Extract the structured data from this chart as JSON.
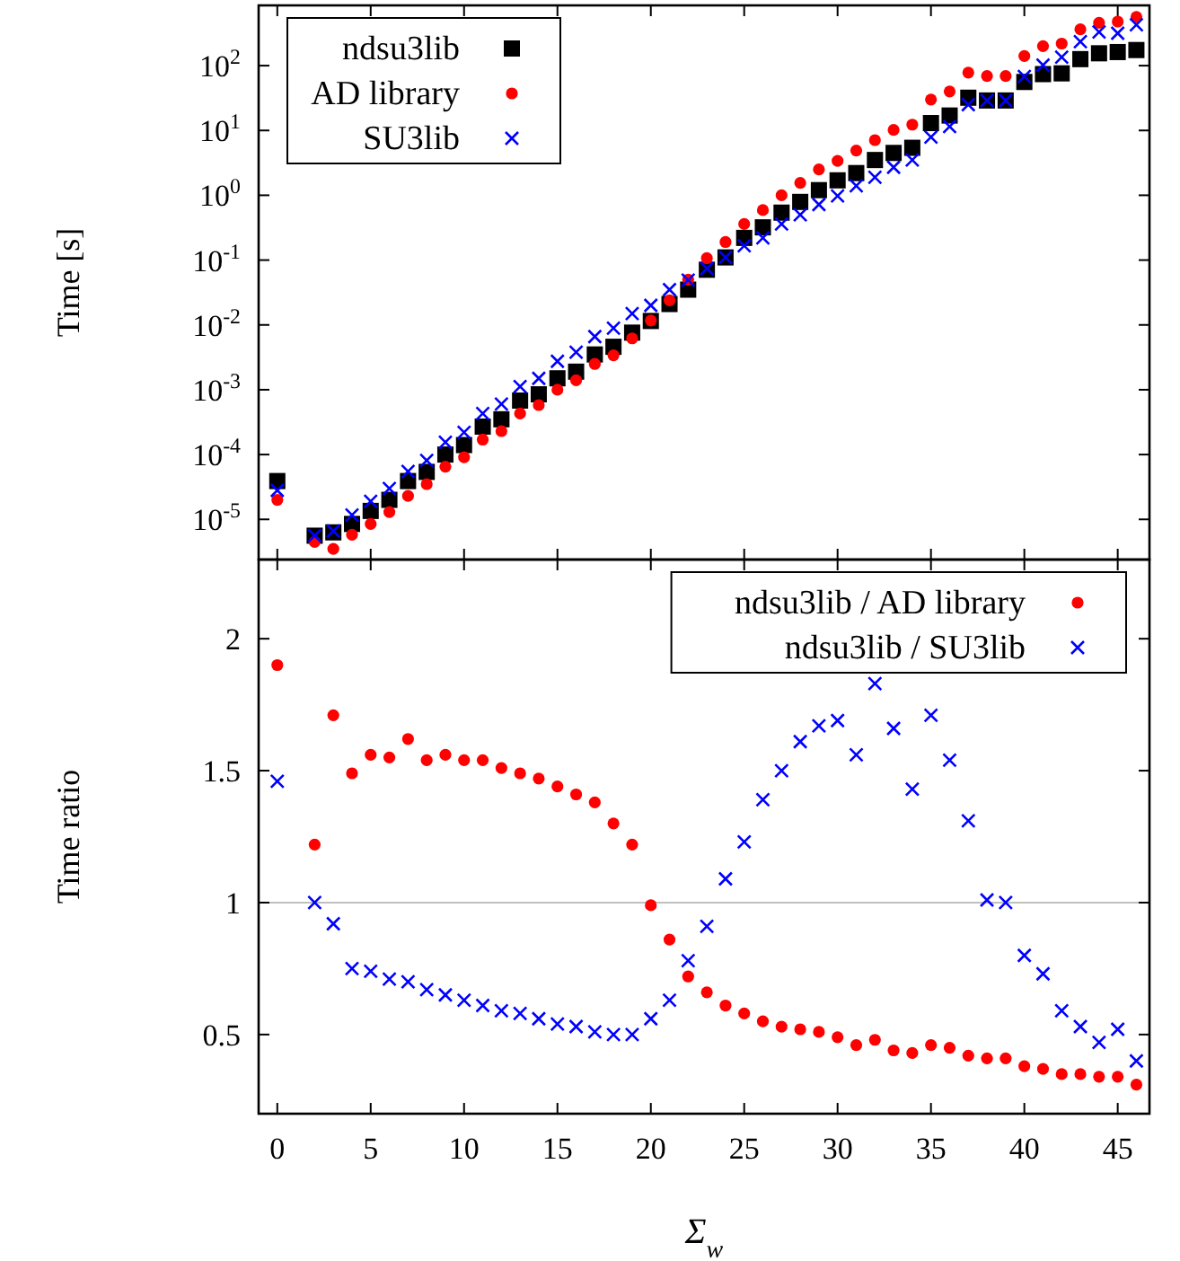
{
  "chart_data": [
    {
      "type": "scatter",
      "ylabel": "Time [s]",
      "log": "y",
      "legend": "top left",
      "tick_labels": "y",
      "grid": false,
      "x": [
        0,
        2,
        3,
        4,
        5,
        6,
        7,
        8,
        9,
        10,
        11,
        12,
        13,
        14,
        15,
        16,
        17,
        18,
        19,
        20,
        21,
        22,
        23,
        24,
        25,
        26,
        27,
        28,
        29,
        30,
        31,
        32,
        33,
        34,
        35,
        36,
        37,
        38,
        39,
        40,
        41,
        42,
        43,
        44,
        45,
        46
      ],
      "xlim": [
        -1,
        46.7
      ],
      "xticks": [
        0,
        5,
        10,
        15,
        20,
        25,
        30,
        35,
        40,
        45
      ],
      "ylim": [
        2.4e-06,
        850
      ],
      "yticks": [
        {
          "value": 1e-05,
          "label": "10$^{-5}$"
        },
        {
          "value": 0.0001,
          "label": "10$^{-4}$"
        },
        {
          "value": 0.001,
          "label": "10$^{-3}$"
        },
        {
          "value": 0.01,
          "label": "10$^{-2}$"
        },
        {
          "value": 0.1,
          "label": "10$^{-1}$"
        },
        {
          "value": 1,
          "label": "10$^{0}$"
        },
        {
          "value": 10,
          "label": "10$^{1}$"
        },
        {
          "value": 100,
          "label": "10$^{2}$"
        }
      ],
      "series": [
        {
          "name": "ndsu3lib",
          "color": "#000000",
          "marker": "square",
          "values": [
            3.9e-05,
            5.6e-06,
            6.3e-06,
            8.5e-06,
            1.35e-05,
            2e-05,
            3.9e-05,
            5.4e-05,
            0.0001,
            0.00014,
            0.00027,
            0.00035,
            0.00068,
            0.00085,
            0.0015,
            0.0019,
            0.0035,
            0.0046,
            0.0076,
            0.0115,
            0.021,
            0.035,
            0.071,
            0.11,
            0.22,
            0.32,
            0.54,
            0.79,
            1.2,
            1.7,
            2.2,
            3.5,
            4.5,
            5.4,
            13,
            17,
            32,
            29,
            29,
            56,
            74,
            76,
            126,
            155,
            162,
            174
          ]
        },
        {
          "name": "AD library",
          "color": "#ff0000",
          "marker": "circle",
          "values": [
            2e-05,
            4.5e-06,
            3.5e-06,
            5.8e-06,
            8.5e-06,
            1.3e-05,
            2.3e-05,
            3.5e-05,
            6.5e-05,
            9.1e-05,
            0.00017,
            0.00023,
            0.00043,
            0.00058,
            0.001,
            0.0014,
            0.0025,
            0.0034,
            0.0062,
            0.0117,
            0.024,
            0.05,
            0.107,
            0.19,
            0.36,
            0.59,
            1.0,
            1.55,
            2.5,
            3.4,
            4.9,
            7.1,
            10.2,
            12.3,
            30,
            40,
            78,
            69,
            69,
            141,
            200,
            219,
            363,
            457,
            479,
            562
          ]
        },
        {
          "name": "SU3lib",
          "color": "#0000ff",
          "marker": "cross",
          "values": [
            2.8e-05,
            5.6e-06,
            6.6e-06,
            1.17e-05,
            1.9e-05,
            3e-05,
            5.5e-05,
            8.1e-05,
            0.000155,
            0.00022,
            0.00043,
            0.0006,
            0.00112,
            0.0015,
            0.00275,
            0.0038,
            0.0066,
            0.0089,
            0.015,
            0.02,
            0.035,
            0.049,
            0.074,
            0.11,
            0.166,
            0.22,
            0.36,
            0.5,
            0.72,
            0.98,
            1.4,
            1.9,
            2.7,
            3.5,
            7.9,
            11.5,
            25,
            29,
            29,
            68,
            102,
            135,
            234,
            331,
            316,
            427
          ]
        }
      ]
    },
    {
      "type": "scatter",
      "ylabel": "Time ratio",
      "xlabel": "Σ$_{w}$",
      "legend": "top right",
      "grid": false,
      "x": [
        0,
        2,
        3,
        4,
        5,
        6,
        7,
        8,
        9,
        10,
        11,
        12,
        13,
        14,
        15,
        16,
        17,
        18,
        19,
        20,
        21,
        22,
        23,
        24,
        25,
        26,
        27,
        28,
        29,
        30,
        31,
        32,
        33,
        34,
        35,
        36,
        37,
        38,
        39,
        40,
        41,
        42,
        43,
        44,
        45,
        46
      ],
      "xlim": [
        -1,
        46.7
      ],
      "xticks": [
        0,
        5,
        10,
        15,
        20,
        25,
        30,
        35,
        40,
        45
      ],
      "ylim": [
        0.2,
        2.3
      ],
      "yticks": [
        0.5,
        1,
        1.5,
        2
      ],
      "ref_lines": [
        {
          "axis": "y",
          "value": 1,
          "color": "#c0c0c0"
        }
      ],
      "series": [
        {
          "name": "ndsu3lib / AD library",
          "color": "#ff0000",
          "marker": "circle",
          "values": [
            1.9,
            1.22,
            1.71,
            1.49,
            1.56,
            1.55,
            1.62,
            1.54,
            1.56,
            1.54,
            1.54,
            1.51,
            1.49,
            1.47,
            1.44,
            1.41,
            1.38,
            1.3,
            1.22,
            0.99,
            0.86,
            0.72,
            0.66,
            0.61,
            0.58,
            0.55,
            0.53,
            0.52,
            0.51,
            0.49,
            0.46,
            0.48,
            0.44,
            0.43,
            0.46,
            0.45,
            0.42,
            0.41,
            0.41,
            0.38,
            0.37,
            0.35,
            0.35,
            0.34,
            0.34,
            0.31
          ]
        },
        {
          "name": "ndsu3lib / SU3lib",
          "color": "#0000ff",
          "marker": "cross",
          "values": [
            1.46,
            1.0,
            0.92,
            0.75,
            0.74,
            0.71,
            0.7,
            0.67,
            0.65,
            0.63,
            0.61,
            0.59,
            0.58,
            0.56,
            0.54,
            0.53,
            0.51,
            0.5,
            0.5,
            0.56,
            0.63,
            0.78,
            0.91,
            1.09,
            1.23,
            1.39,
            1.5,
            1.61,
            1.67,
            1.69,
            1.56,
            1.83,
            1.66,
            1.43,
            1.71,
            1.54,
            1.31,
            1.01,
            1.0,
            0.8,
            0.73,
            0.59,
            0.53,
            0.47,
            0.52,
            0.4
          ]
        }
      ]
    }
  ]
}
